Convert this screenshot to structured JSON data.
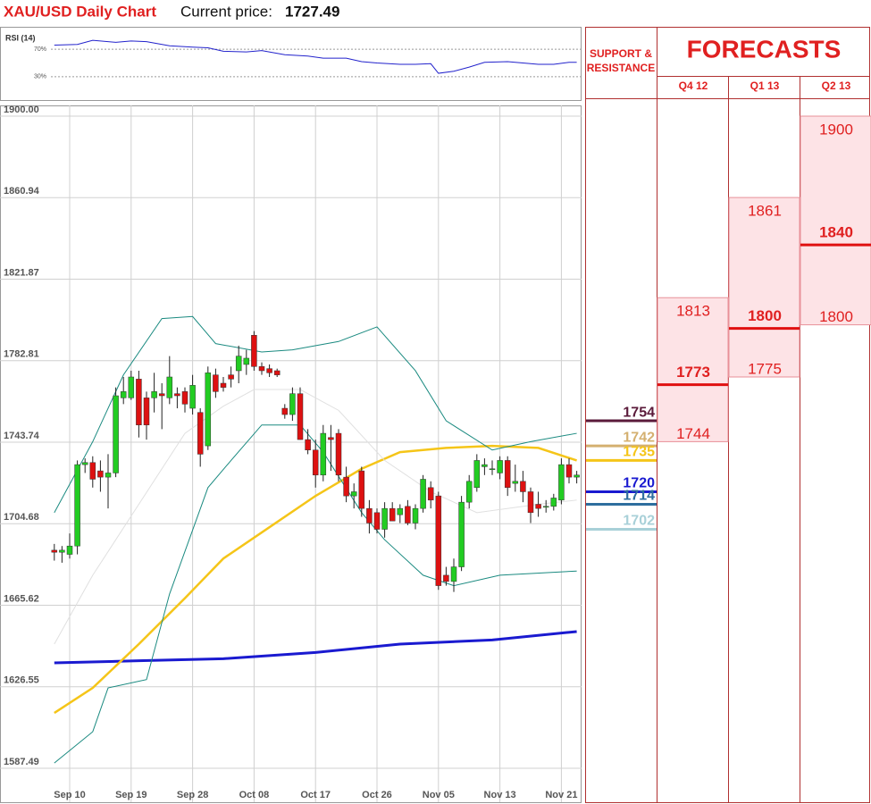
{
  "header": {
    "title": "XAU/USD Daily Chart",
    "price_label": "Current price:",
    "price": 1727.49
  },
  "chart_data": [
    {
      "type": "candlestick",
      "categories": [
        null,
        null,
        "Sep 10",
        null,
        null,
        null,
        null,
        null,
        null,
        null,
        "Sep 19",
        null,
        null,
        null,
        null,
        null,
        null,
        null,
        "Sep 28",
        null,
        null,
        null,
        null,
        null,
        null,
        null,
        "Oct 08",
        null,
        null,
        null,
        null,
        null,
        null,
        null,
        "Oct 17",
        null,
        null,
        null,
        null,
        null,
        null,
        null,
        "Oct 26",
        null,
        null,
        null,
        null,
        null,
        null,
        null,
        "Nov 05",
        null,
        null,
        null,
        null,
        null,
        null,
        null,
        "Nov 13",
        null,
        null,
        null,
        null,
        null,
        null,
        null,
        "Nov 21",
        null,
        null
      ],
      "open": [
        1692,
        1691,
        1690,
        1694,
        1733,
        1734,
        1730,
        1727,
        1729,
        1765,
        1765,
        1774,
        1765,
        1765,
        1767,
        1765,
        1767,
        1768,
        1760,
        1758,
        1742,
        1776,
        1772,
        1776,
        1778,
        1781,
        1795,
        1780,
        1779,
        1778,
        1760,
        1757,
        1767,
        1745,
        1740,
        1728,
        1746,
        1748,
        1727,
        1718,
        1730,
        1712,
        1710,
        1702,
        1712,
        1709,
        1713,
        1705,
        1712,
        1722,
        1718,
        1680,
        1677,
        1684,
        1715,
        1722,
        1732,
        1731,
        1729,
        1735,
        1724,
        1725,
        1720,
        1714,
        1713,
        1713,
        1716,
        1733,
        1727
      ],
      "high": [
        1695,
        1694,
        1700,
        1735,
        1736,
        1737,
        1735,
        1738,
        1770,
        1775,
        1778,
        1778,
        1768,
        1777,
        1772,
        1785,
        1770,
        1770,
        1776,
        1760,
        1780,
        1779,
        1775,
        1780,
        1790,
        1788,
        1797,
        1782,
        1781,
        1779,
        1762,
        1770,
        1770,
        1750,
        1745,
        1752,
        1752,
        1750,
        1732,
        1724,
        1732,
        1716,
        1712,
        1715,
        1715,
        1714,
        1716,
        1714,
        1728,
        1725,
        1720,
        1684,
        1688,
        1718,
        1728,
        1738,
        1736,
        1735,
        1737,
        1737,
        1733,
        1730,
        1722,
        1720,
        1716,
        1719,
        1736,
        1736,
        1730
      ],
      "low": [
        1687,
        1686,
        1688,
        1690,
        1729,
        1722,
        1720,
        1712,
        1727,
        1762,
        1764,
        1746,
        1745,
        1758,
        1750,
        1762,
        1760,
        1758,
        1757,
        1732,
        1740,
        1765,
        1768,
        1770,
        1772,
        1776,
        1778,
        1776,
        1775,
        1775,
        1755,
        1754,
        1745,
        1738,
        1722,
        1725,
        1730,
        1725,
        1715,
        1712,
        1708,
        1700,
        1700,
        1698,
        1706,
        1705,
        1704,
        1702,
        1710,
        1712,
        1673,
        1675,
        1672,
        1682,
        1712,
        1720,
        1728,
        1728,
        1726,
        1718,
        1720,
        1715,
        1705,
        1708,
        1710,
        1711,
        1714,
        1724,
        1724
      ],
      "close": [
        1691,
        1692,
        1694,
        1733,
        1734,
        1726,
        1727,
        1729,
        1766,
        1768,
        1775,
        1752,
        1752,
        1768,
        1766,
        1775,
        1766,
        1762,
        1771,
        1738,
        1777,
        1768,
        1770,
        1774,
        1785,
        1784,
        1780,
        1778,
        1777,
        1776,
        1757,
        1767,
        1745,
        1740,
        1728,
        1748,
        1745,
        1728,
        1718,
        1720,
        1712,
        1705,
        1702,
        1712,
        1706,
        1712,
        1705,
        1712,
        1726,
        1716,
        1675,
        1677,
        1684,
        1715,
        1725,
        1735,
        1733,
        1731,
        1735,
        1722,
        1725,
        1720,
        1710,
        1712,
        1713,
        1717,
        1733,
        1727,
        1728
      ],
      "up_color": "#22cc22",
      "down_color": "#dd1111",
      "ylim": [
        1587.49,
        1900
      ],
      "yticks": [
        1587.49,
        1626.55,
        1665.62,
        1704.68,
        1743.74,
        1782.81,
        1821.87,
        1860.94,
        {
          "value": 1900,
          "label": "1900.00"
        }
      ],
      "grid": true,
      "overlays": [
        {
          "color": "#1a1ad0",
          "x": [
            0,
            11,
            22,
            34,
            45,
            57,
            68
          ],
          "values": [
            1638,
            1639,
            1640,
            1643,
            1647,
            1649,
            1653
          ]
        },
        {
          "color": "#f5c518",
          "x": [
            0,
            5,
            11,
            17,
            22,
            28,
            34,
            40,
            45,
            51,
            57,
            63,
            68
          ],
          "values": [
            1614,
            1626,
            1647,
            1669,
            1688,
            1703,
            1718,
            1731,
            1739,
            1741,
            1742,
            1741,
            1735
          ]
        },
        {
          "color": "#e0e0e0",
          "x": [
            0,
            5,
            11,
            17,
            22,
            26,
            32,
            37,
            43,
            49,
            55,
            63,
            68
          ],
          "values": [
            1647,
            1680,
            1714,
            1748,
            1761,
            1769,
            1769,
            1759,
            1735,
            1720,
            1710,
            1714,
            1716
          ]
        },
        {
          "color": "#1a8a80",
          "x": [
            0,
            5,
            9,
            14,
            18,
            21,
            27,
            31,
            37,
            42,
            47,
            51,
            57,
            62,
            68
          ],
          "values": [
            1710,
            1744,
            1776,
            1803,
            1804,
            1791,
            1787,
            1788,
            1792,
            1799,
            1778,
            1754,
            1740,
            1744,
            1748
          ]
        },
        {
          "color": "#1a8a80",
          "x": [
            0,
            5,
            7,
            12,
            15,
            20,
            23,
            27,
            32,
            35,
            40,
            43,
            48,
            52,
            58,
            68
          ],
          "values": [
            1590,
            1605,
            1626,
            1630,
            1671,
            1722,
            1735,
            1752,
            1752,
            1739,
            1710,
            1697,
            1680,
            1675,
            1680,
            1682
          ]
        }
      ]
    },
    {
      "type": "line",
      "title": "RSI (14)",
      "color": "#2222cc",
      "ylim": [
        0,
        100
      ],
      "yticks": [
        {
          "value": 30,
          "label": "30%"
        },
        {
          "value": 70,
          "label": "70%"
        }
      ],
      "x": [
        0,
        3,
        5,
        8,
        10,
        12,
        15,
        18,
        20,
        22,
        25,
        27,
        30,
        33,
        35,
        38,
        40,
        42,
        45,
        47,
        49,
        50,
        52,
        54,
        56,
        59,
        61,
        63,
        65,
        67,
        68
      ],
      "values": [
        76,
        77,
        83,
        80,
        82,
        81,
        75,
        73,
        72,
        67,
        66,
        68,
        62,
        60,
        57,
        57,
        52,
        50,
        48,
        48,
        49,
        35,
        38,
        44,
        51,
        52,
        50,
        48,
        48,
        51,
        51
      ]
    }
  ],
  "support_resistance": {
    "title": "SUPPORT & RESISTANCE",
    "levels": [
      {
        "value": 1754,
        "color": "#5a1a3a"
      },
      {
        "value": 1742,
        "color": "#d4b070"
      },
      {
        "value": 1735,
        "color": "#f5c518"
      },
      {
        "value": 1720,
        "color": "#1a1ad0"
      },
      {
        "value": 1714,
        "color": "#2e6e9e"
      },
      {
        "value": 1702,
        "color": "#a8d0d8"
      }
    ]
  },
  "forecasts": {
    "title": "FORECASTS",
    "quarters": [
      {
        "label": "Q4 12",
        "high": 1813,
        "mid": 1773,
        "low": 1744
      },
      {
        "label": "Q1 13",
        "high": 1861,
        "mid": 1800,
        "low": 1775
      },
      {
        "label": "Q2 13",
        "high": 1900,
        "mid": 1840,
        "low": 1800
      }
    ]
  }
}
